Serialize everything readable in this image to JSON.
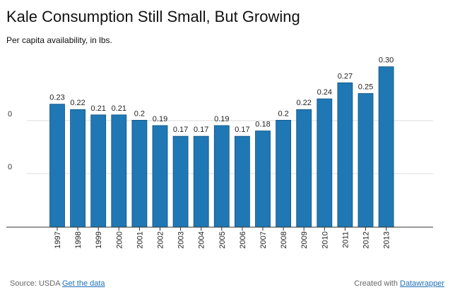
{
  "chart_data": {
    "type": "bar",
    "title": "Kale Consumption Still Small, But Growing",
    "subtitle": "Per capita availability, in lbs.",
    "categories": [
      "1997",
      "1998",
      "1999",
      "2000",
      "2001",
      "2002",
      "2003",
      "2004",
      "2005",
      "2006",
      "2007",
      "2008",
      "2009",
      "2010",
      "2011",
      "2012",
      "2013"
    ],
    "values": [
      0.23,
      0.22,
      0.21,
      0.21,
      0.2,
      0.19,
      0.17,
      0.17,
      0.19,
      0.17,
      0.18,
      0.2,
      0.22,
      0.24,
      0.27,
      0.25,
      0.3
    ],
    "value_labels": [
      "0.23",
      "0.22",
      "0.21",
      "0.21",
      "0.2",
      "0.19",
      "0.17",
      "0.17",
      "0.19",
      "0.17",
      "0.18",
      "0.2",
      "0.22",
      "0.24",
      "0.27",
      "0.25",
      "0.30"
    ],
    "y_tick_labels": [
      "0",
      "0"
    ],
    "ylim": [
      0,
      0.3
    ],
    "xlabel": "",
    "ylabel": "",
    "bar_color": "#1f78b4",
    "bar_outline_color": "#0f4f86",
    "grid": true,
    "legend": "none"
  },
  "footer": {
    "source_prefix": "Source: USDA",
    "source_link": "Get the data",
    "credit_prefix": "Created with",
    "credit_link": "Datawrapper"
  }
}
